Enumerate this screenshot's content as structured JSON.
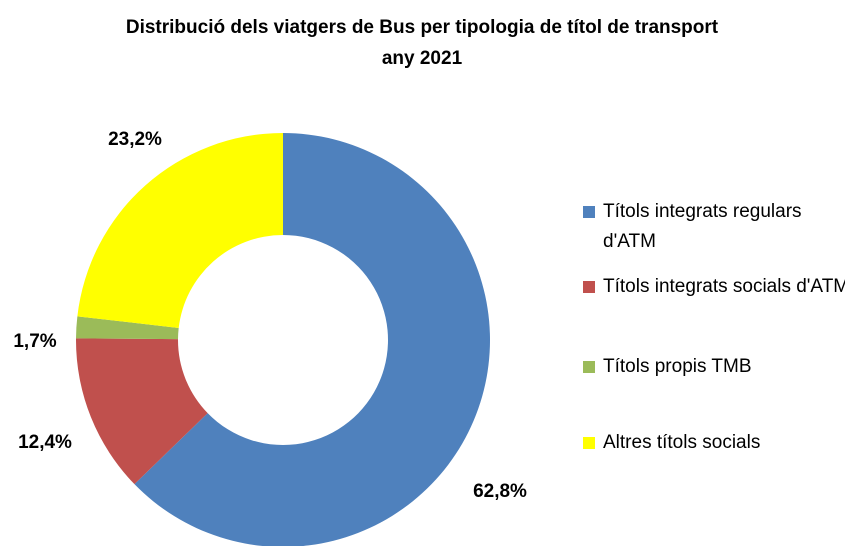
{
  "chart_data": {
    "type": "pie",
    "title": "Distribució dels viatgers de Bus per tipologia de títol de transport any 2021",
    "categories": [
      "Títols integrats regulars d'ATM",
      "Títols integrats socials d'ATM",
      "Títols propis TMB",
      "Altres títols socials"
    ],
    "values": [
      62.8,
      12.4,
      1.7,
      23.2
    ],
    "value_labels": [
      "62,8%",
      "12,4%",
      "1,7%",
      "23,2%"
    ],
    "colors": [
      "#4f81bd",
      "#c0504d",
      "#9bbb59",
      "#ffff00"
    ],
    "donut": true,
    "legend": "right"
  }
}
